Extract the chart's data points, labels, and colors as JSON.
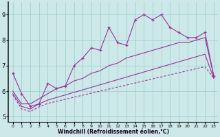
{
  "background_color": "#cce8e8",
  "grid_color": "#99cccc",
  "line_color": "#993399",
  "x_hours": [
    0,
    1,
    2,
    3,
    4,
    5,
    6,
    7,
    8,
    9,
    10,
    11,
    12,
    13,
    14,
    15,
    16,
    17,
    18,
    19,
    20,
    21,
    22,
    23
  ],
  "main_line": [
    6.7,
    5.9,
    5.4,
    5.5,
    6.3,
    6.1,
    6.2,
    7.0,
    7.3,
    7.7,
    7.6,
    8.5,
    7.9,
    7.8,
    8.8,
    9.0,
    8.8,
    9.0,
    8.5,
    8.3,
    8.1,
    8.1,
    8.3,
    6.6
  ],
  "trend_solid_upper": [
    6.0,
    5.5,
    5.5,
    5.7,
    5.9,
    6.1,
    6.2,
    6.4,
    6.5,
    6.7,
    6.8,
    7.0,
    7.1,
    7.3,
    7.4,
    7.5,
    7.6,
    7.7,
    7.8,
    7.9,
    7.9,
    8.0,
    8.1,
    6.6
  ],
  "trend_solid_lower": [
    5.9,
    5.4,
    5.3,
    5.5,
    5.65,
    5.75,
    5.85,
    5.95,
    6.05,
    6.15,
    6.25,
    6.35,
    6.45,
    6.55,
    6.65,
    6.75,
    6.85,
    6.95,
    7.05,
    7.15,
    7.25,
    7.35,
    7.45,
    6.5
  ],
  "trend_dashed": [
    5.85,
    5.3,
    5.2,
    5.38,
    5.52,
    5.6,
    5.68,
    5.76,
    5.84,
    5.92,
    6.0,
    6.08,
    6.16,
    6.24,
    6.32,
    6.4,
    6.48,
    6.56,
    6.64,
    6.72,
    6.8,
    6.88,
    6.96,
    6.5
  ],
  "xlabel": "Windchill (Refroidissement éolien,°C)",
  "ylim": [
    4.8,
    9.5
  ],
  "yticks": [
    5,
    6,
    7,
    8,
    9
  ],
  "xlim": [
    -0.5,
    23.5
  ]
}
